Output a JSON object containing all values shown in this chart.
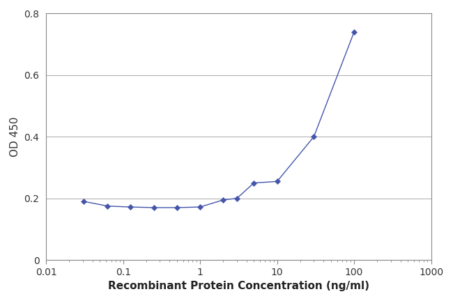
{
  "x": [
    0.031,
    0.063,
    0.125,
    0.25,
    0.5,
    1.0,
    2.0,
    3.0,
    5.0,
    10.0,
    30.0,
    100.0
  ],
  "y": [
    0.19,
    0.175,
    0.172,
    0.17,
    0.17,
    0.172,
    0.195,
    0.2,
    0.25,
    0.255,
    0.4,
    0.74
  ],
  "line_color": "#4455aa",
  "marker": "D",
  "marker_size": 4,
  "marker_facecolor": "#4455aa",
  "xlabel": "Recombinant Protein Concentration (ng/ml)",
  "ylabel": "OD 450",
  "xlim": [
    0.01,
    1000
  ],
  "ylim": [
    0,
    0.8
  ],
  "yticks": [
    0,
    0.2,
    0.4,
    0.6,
    0.8
  ],
  "xticks": [
    0.01,
    0.1,
    1,
    10,
    100,
    1000
  ],
  "xtick_labels": [
    "0.01",
    "0.1",
    "1",
    "10",
    "100",
    "1000"
  ],
  "grid_color": "#aaaaaa",
  "background_color": "#ffffff",
  "xlabel_fontsize": 11,
  "ylabel_fontsize": 11,
  "tick_fontsize": 10
}
